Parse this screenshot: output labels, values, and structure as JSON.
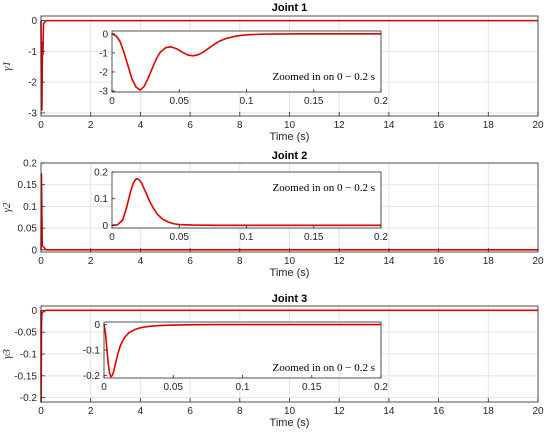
{
  "chart_data": [
    {
      "type": "line",
      "title": "Joint 1",
      "xlabel": "Time (s)",
      "ylabel": "γ1",
      "xlim": [
        0,
        20
      ],
      "ylim": [
        -3.1,
        0.15
      ],
      "xticks": [
        0,
        2,
        4,
        6,
        8,
        10,
        12,
        14,
        16,
        18,
        20
      ],
      "yticks": [
        0,
        -1,
        -2,
        -3
      ],
      "grid": true,
      "series": [
        {
          "color": "#e00000",
          "x": [
            0,
            0.015,
            0.035,
            0.06,
            0.08,
            0.1,
            0.2,
            20
          ],
          "y": [
            0,
            -2.2,
            -2.9,
            -0.7,
            -1.1,
            -0.1,
            0,
            0
          ]
        }
      ],
      "inset": {
        "annotation": "Zoomed in on 0 − 0.2 s",
        "xlim": [
          0,
          0.2
        ],
        "ylim": [
          -3.05,
          0.15
        ],
        "xticks": [
          0,
          0.05,
          0.1,
          0.15,
          0.2
        ],
        "xticklabels": [
          "0",
          "0.05",
          "0.1",
          "0.15",
          "0.2"
        ],
        "yticks": [
          0,
          -1,
          -2,
          -3
        ],
        "series": [
          {
            "color": "#e00000",
            "x": [
              0,
              0.003,
              0.006,
              0.009,
              0.012,
              0.015,
              0.018,
              0.021,
              0.024,
              0.027,
              0.03,
              0.033,
              0.036,
              0.04,
              0.044,
              0.048,
              0.052,
              0.056,
              0.06,
              0.064,
              0.068,
              0.072,
              0.076,
              0.08,
              0.085,
              0.09,
              0.095,
              0.1,
              0.11,
              0.12,
              0.14,
              0.16,
              0.2
            ],
            "y": [
              0,
              -0.1,
              -0.4,
              -1.0,
              -1.7,
              -2.4,
              -2.8,
              -2.95,
              -2.75,
              -2.3,
              -1.8,
              -1.3,
              -0.95,
              -0.72,
              -0.68,
              -0.78,
              -0.95,
              -1.1,
              -1.15,
              -1.1,
              -0.95,
              -0.75,
              -0.55,
              -0.38,
              -0.24,
              -0.15,
              -0.09,
              -0.05,
              -0.02,
              -0.01,
              0,
              0,
              0
            ]
          }
        ]
      }
    },
    {
      "type": "line",
      "title": "Joint 2",
      "xlabel": "Time (s)",
      "ylabel": "γ2",
      "xlim": [
        0,
        20
      ],
      "ylim": [
        -0.005,
        0.2
      ],
      "xticks": [
        0,
        2,
        4,
        6,
        8,
        10,
        12,
        14,
        16,
        18,
        20
      ],
      "yticks": [
        0,
        0.05,
        0.1,
        0.15,
        0.2
      ],
      "grid": true,
      "series": [
        {
          "color": "#e00000",
          "x": [
            0,
            0.005,
            0.018,
            0.05,
            0.2,
            20
          ],
          "y": [
            0,
            0.01,
            0.175,
            0.01,
            0,
            0
          ]
        }
      ],
      "inset": {
        "annotation": "Zoomed in on 0 − 0.2 s",
        "xlim": [
          0,
          0.2
        ],
        "ylim": [
          -0.01,
          0.2
        ],
        "xticks": [
          0,
          0.05,
          0.1,
          0.15,
          0.2
        ],
        "xticklabels": [
          "0",
          "0.05",
          "0.1",
          "0.15",
          "0.2"
        ],
        "yticks": [
          0,
          0.1,
          0.2
        ],
        "series": [
          {
            "color": "#e00000",
            "x": [
              0,
              0.004,
              0.008,
              0.011,
              0.014,
              0.016,
              0.018,
              0.02,
              0.022,
              0.025,
              0.028,
              0.031,
              0.034,
              0.038,
              0.042,
              0.046,
              0.05,
              0.06,
              0.08,
              0.1,
              0.2
            ],
            "y": [
              0,
              0.002,
              0.02,
              0.07,
              0.13,
              0.16,
              0.175,
              0.172,
              0.158,
              0.125,
              0.09,
              0.062,
              0.04,
              0.022,
              0.012,
              0.006,
              0.003,
              0.001,
              0,
              0,
              0
            ]
          }
        ]
      }
    },
    {
      "type": "line",
      "title": "Joint 3",
      "xlabel": "Time (s)",
      "ylabel": "γ3",
      "xlim": [
        0,
        20
      ],
      "ylim": [
        -0.21,
        0.01
      ],
      "xticks": [
        0,
        2,
        4,
        6,
        8,
        10,
        12,
        14,
        16,
        18,
        20
      ],
      "yticks": [
        0,
        -0.05,
        -0.1,
        -0.15,
        -0.2
      ],
      "grid": true,
      "series": [
        {
          "color": "#e00000",
          "x": [
            0,
            0.004,
            0.01,
            0.02,
            0.04,
            0.2,
            20
          ],
          "y": [
            0,
            -0.21,
            -0.15,
            -0.03,
            -0.005,
            0,
            0
          ]
        }
      ],
      "inset": {
        "annotation": "Zoomed in on 0 − 0.2 s",
        "xlim": [
          0,
          0.2
        ],
        "ylim": [
          -0.21,
          0.01
        ],
        "xticks": [
          0,
          0.05,
          0.1,
          0.15,
          0.2
        ],
        "xticklabels": [
          "0",
          "0.05",
          "0.1",
          "0.15",
          "0.2"
        ],
        "yticks": [
          0,
          -0.1,
          -0.2
        ],
        "series": [
          {
            "color": "#e00000",
            "x": [
              0,
              0.001,
              0.002,
              0.003,
              0.004,
              0.005,
              0.006,
              0.007,
              0.008,
              0.01,
              0.012,
              0.015,
              0.018,
              0.022,
              0.026,
              0.03,
              0.035,
              0.04,
              0.05,
              0.06,
              0.08,
              0.1,
              0.2
            ],
            "y": [
              0,
              -0.03,
              -0.09,
              -0.15,
              -0.19,
              -0.205,
              -0.2,
              -0.185,
              -0.16,
              -0.115,
              -0.08,
              -0.05,
              -0.032,
              -0.02,
              -0.013,
              -0.009,
              -0.006,
              -0.004,
              -0.002,
              -0.001,
              0,
              0,
              0
            ]
          }
        ]
      }
    }
  ]
}
